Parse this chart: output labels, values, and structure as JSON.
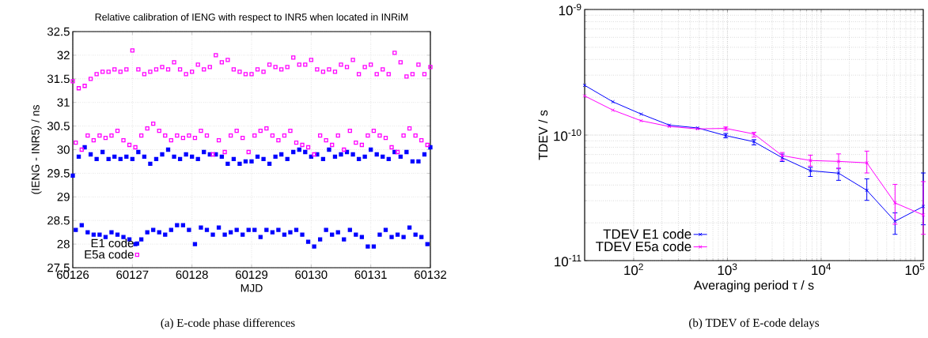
{
  "chart_data": [
    {
      "type": "scatter",
      "title": "Relative calibration of IENG with respect to INR5 when located in INRiM",
      "xlabel": "MJD",
      "ylabel": "(IENG - INR5) / ns",
      "x": [
        60126,
        60126.05,
        60126.1,
        60126.15,
        60126.2,
        60126.25,
        60126.3,
        60126.35,
        60126.4,
        60126.45,
        60126.5,
        60126.55,
        60126.6,
        60126.65,
        60126.7,
        60126.75,
        60126.8,
        60126.85,
        60126.9,
        60126.95,
        60127,
        60127.05,
        60127.1,
        60127.15,
        60127.2,
        60127.25,
        60127.3,
        60127.35,
        60127.4,
        60127.45,
        60127.5,
        60127.55,
        60127.6,
        60127.65,
        60127.7,
        60127.75,
        60127.8,
        60127.85,
        60127.9,
        60127.95,
        60128,
        60128.05,
        60128.1,
        60128.15,
        60128.2,
        60128.25,
        60128.3,
        60128.35,
        60128.4,
        60128.45,
        60128.5,
        60128.55,
        60128.6,
        60128.65,
        60128.7,
        60128.75,
        60128.8,
        60128.85,
        60128.9,
        60128.95,
        60129,
        60129.05,
        60129.1,
        60129.15,
        60129.2,
        60129.25,
        60129.3,
        60129.35,
        60129.4,
        60129.45,
        60129.5,
        60129.55,
        60129.6,
        60129.65,
        60129.7,
        60129.75,
        60129.8,
        60129.85,
        60129.9,
        60129.95,
        60130,
        60130.05,
        60130.1,
        60130.15,
        60130.2,
        60130.25,
        60130.3,
        60130.35,
        60130.4,
        60130.45,
        60130.5,
        60130.55,
        60130.6,
        60130.65,
        60130.7,
        60130.75,
        60130.8,
        60130.85,
        60130.9,
        60130.95,
        60131,
        60131.05,
        60131.1,
        60131.15,
        60131.2,
        60131.25,
        60131.3,
        60131.35,
        60131.4,
        60131.45,
        60131.5,
        60131.55,
        60131.6,
        60131.65,
        60131.7,
        60131.75,
        60131.8,
        60131.85,
        60131.9,
        60131.95,
        60132
      ],
      "series": [
        {
          "name": "E1 code",
          "color": "#0000ff",
          "values": [
            29.45,
            28.3,
            29.85,
            28.4,
            30.05,
            28.25,
            29.9,
            28.2,
            29.8,
            28.2,
            29.95,
            28.15,
            29.8,
            28.25,
            29.85,
            28.2,
            29.8,
            28.15,
            29.85,
            28.1,
            29.8,
            28.0,
            29.95,
            28.1,
            29.85,
            28.25,
            29.7,
            28.3,
            29.8,
            28.25,
            29.9,
            28.2,
            30.0,
            28.3,
            29.85,
            28.4,
            29.8,
            28.4,
            29.9,
            28.3,
            29.85,
            28.0,
            29.8,
            28.35,
            29.95,
            28.3,
            29.9,
            28.2,
            29.9,
            28.35,
            29.85,
            28.2,
            29.7,
            28.25,
            29.8,
            28.3,
            29.7,
            28.2,
            29.75,
            28.3,
            29.75,
            28.3,
            29.85,
            28.15,
            29.8,
            28.3,
            29.7,
            28.25,
            29.85,
            28.3,
            29.9,
            28.2,
            29.8,
            28.25,
            29.95,
            28.3,
            30.0,
            28.2,
            29.95,
            28.05,
            29.85,
            27.95,
            29.9,
            28.1,
            29.8,
            28.3,
            30.0,
            28.2,
            29.85,
            28.25,
            29.9,
            28.1,
            29.95,
            28.3,
            29.9,
            28.2,
            29.8,
            28.15,
            29.85,
            27.95,
            30.0,
            27.95,
            29.9,
            28.2,
            29.85,
            28.3,
            29.8,
            28.15,
            29.95,
            28.2,
            29.85,
            28.15,
            29.95,
            28.35,
            29.75,
            28.2,
            29.75,
            28.15,
            29.9,
            28.0,
            30.05
          ]
        },
        {
          "name": "E5a code",
          "color": "#ff00ff",
          "values": [
            31.45,
            30.15,
            31.3,
            30.0,
            31.35,
            30.3,
            31.5,
            30.2,
            31.6,
            30.3,
            31.65,
            30.25,
            31.65,
            30.3,
            31.7,
            30.4,
            31.65,
            30.2,
            31.7,
            30.1,
            32.1,
            30.05,
            31.7,
            30.3,
            31.6,
            30.45,
            31.65,
            30.55,
            31.7,
            30.4,
            31.75,
            30.3,
            31.7,
            30.2,
            31.85,
            30.3,
            31.7,
            30.25,
            31.6,
            30.3,
            31.65,
            30.25,
            31.8,
            30.4,
            31.7,
            30.3,
            31.75,
            29.9,
            32.0,
            30.2,
            31.85,
            29.95,
            31.9,
            30.3,
            31.7,
            30.4,
            31.65,
            30.25,
            31.6,
            29.95,
            31.6,
            30.3,
            31.7,
            30.4,
            31.65,
            30.45,
            31.8,
            30.3,
            31.75,
            30.2,
            31.7,
            30.3,
            31.75,
            30.4,
            31.95,
            30.15,
            31.8,
            30.1,
            31.8,
            30.05,
            31.9,
            29.9,
            31.7,
            30.3,
            31.65,
            30.2,
            31.7,
            30.1,
            31.65,
            30.3,
            31.8,
            30.0,
            31.75,
            30.4,
            31.9,
            30.15,
            31.6,
            30.1,
            31.75,
            30.3,
            31.8,
            30.4,
            31.6,
            30.3,
            31.7,
            30.25,
            31.6,
            30.05,
            32.05,
            29.95,
            31.85,
            30.3,
            31.55,
            30.45,
            31.6,
            30.3,
            31.8,
            30.2,
            31.6,
            30.1,
            31.75
          ]
        }
      ],
      "xlim": [
        60126,
        60132
      ],
      "xticks": [
        60126,
        60127,
        60128,
        60129,
        60130,
        60131,
        60132
      ],
      "ylim": [
        27.5,
        32.5
      ],
      "yticks": [
        27.5,
        28,
        28.5,
        29,
        29.5,
        30,
        30.5,
        31,
        31.5,
        32,
        32.5
      ],
      "grid": true,
      "legend": "bottom left",
      "marker": "square",
      "annotations": [
        "(a) E-code phase differences"
      ]
    },
    {
      "type": "line",
      "xlabel": "Averaging period τ / s",
      "ylabel": "TDEV / s",
      "x": [
        30,
        60,
        120,
        240,
        480,
        960,
        1920,
        3840,
        7680,
        15360,
        30720,
        61440,
        122880
      ],
      "series": [
        {
          "name": "TDEV E1 code",
          "color": "#0000ff",
          "values": [
            2.49e-10,
            1.84e-10,
            1.47e-10,
            1.2e-10,
            1.14e-10,
            9.9e-11,
            8.85e-11,
            6.6e-11,
            5.2e-11,
            4.97e-11,
            3.63e-11,
            2.06e-11,
            2.7e-11
          ],
          "errors": [
            null,
            null,
            null,
            null,
            null,
            [
              9.5e-11,
              1.03e-10
            ],
            [
              8.35e-11,
              9.19e-11
            ],
            [
              6.16e-11,
              7.05e-11
            ],
            [
              4.68e-11,
              5.52e-11
            ],
            [
              4.36e-11,
              5.44e-11
            ],
            [
              3.02e-11,
              4.48e-11
            ],
            [
              1.62e-11,
              2.4e-11
            ],
            [
              1.93e-11,
              4.99e-11
            ]
          ]
        },
        {
          "name": "TDEV E5a code",
          "color": "#ff00ff",
          "values": [
            2.05e-10,
            1.58e-10,
            1.3e-10,
            1.17e-10,
            1.12e-10,
            1.13e-10,
            1.02e-10,
            6.86e-11,
            6.27e-11,
            6.17e-11,
            6.01e-11,
            2.88e-11,
            2.31e-11
          ],
          "errors": [
            null,
            null,
            null,
            null,
            null,
            [
              1.09e-10,
              1.16e-10
            ],
            [
              9.65e-11,
              1.05e-10
            ],
            [
              6.31e-11,
              7.26e-11
            ],
            [
              5.66e-11,
              6.92e-11
            ],
            [
              5.39e-11,
              7.08e-11
            ],
            [
              4.99e-11,
              7.45e-11
            ],
            [
              1.95e-11,
              4.05e-11
            ],
            [
              1.62e-11,
              4.26e-11
            ]
          ]
        }
      ],
      "xlim": [
        30,
        122880
      ],
      "xticks": [
        {
          "value": 100,
          "label": "10$^{2}$"
        },
        {
          "value": 1000,
          "label": "10$^{3}$"
        },
        {
          "value": 10000,
          "label": "10$^{4}$"
        },
        {
          "value": 100000,
          "label": "10$^{5}$"
        }
      ],
      "ylim": [
        1e-11,
        1e-09
      ],
      "yticks": [
        {
          "value": 1e-11,
          "label": "10$^{-11}$"
        },
        {
          "value": 1e-10,
          "label": "10$^{-10}$"
        },
        {
          "value": 1e-09,
          "label": "10$^{-9}$"
        }
      ],
      "log": "xy",
      "grid": true,
      "legend": "bottom left",
      "marker": "cross",
      "line_style": "solid",
      "annotations": [
        "(b) TDEV of E-code delays"
      ]
    }
  ]
}
